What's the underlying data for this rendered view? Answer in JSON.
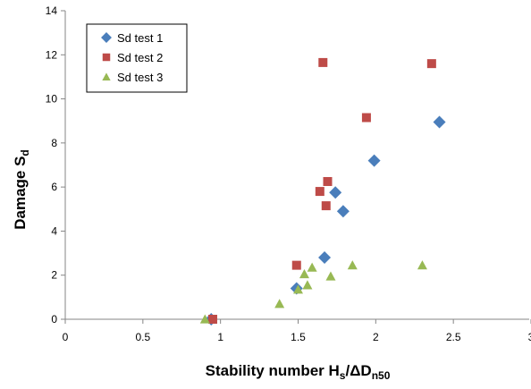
{
  "chart_data": {
    "type": "scatter",
    "title": "",
    "xlabel": {
      "main": "Stability number H",
      "sub1": "s",
      "mid": "/ΔD",
      "sub2": "n50"
    },
    "ylabel": {
      "main": "Damage S",
      "sub": "d"
    },
    "xlim": [
      0,
      3
    ],
    "ylim": [
      0,
      14
    ],
    "xticks": [
      "0",
      "0.5",
      "1",
      "1.5",
      "2",
      "2.5",
      "3"
    ],
    "yticks": [
      "0",
      "2",
      "4",
      "6",
      "8",
      "10",
      "12",
      "14"
    ],
    "grid": false,
    "legend": "top-left",
    "series": [
      {
        "name": "Sd test 1",
        "marker": "diamond",
        "color": "#4a7ebb",
        "points": [
          [
            0.94,
            0.0
          ],
          [
            1.49,
            1.4
          ],
          [
            1.67,
            2.8
          ],
          [
            1.74,
            5.75
          ],
          [
            1.79,
            4.9
          ],
          [
            1.99,
            7.2
          ],
          [
            2.41,
            8.95
          ]
        ]
      },
      {
        "name": "Sd test 2",
        "marker": "square",
        "color": "#be4b48",
        "points": [
          [
            0.95,
            0.0
          ],
          [
            1.49,
            2.45
          ],
          [
            1.64,
            5.8
          ],
          [
            1.66,
            11.65
          ],
          [
            1.68,
            5.15
          ],
          [
            1.69,
            6.25
          ],
          [
            1.94,
            9.15
          ],
          [
            2.36,
            11.6
          ]
        ]
      },
      {
        "name": "Sd test 3",
        "marker": "triangle",
        "color": "#98b954",
        "points": [
          [
            0.9,
            0.0
          ],
          [
            1.38,
            0.7
          ],
          [
            1.5,
            1.35
          ],
          [
            1.54,
            2.05
          ],
          [
            1.56,
            1.55
          ],
          [
            1.59,
            2.35
          ],
          [
            1.71,
            1.95
          ],
          [
            1.85,
            2.45
          ],
          [
            2.3,
            2.45
          ]
        ]
      }
    ]
  }
}
